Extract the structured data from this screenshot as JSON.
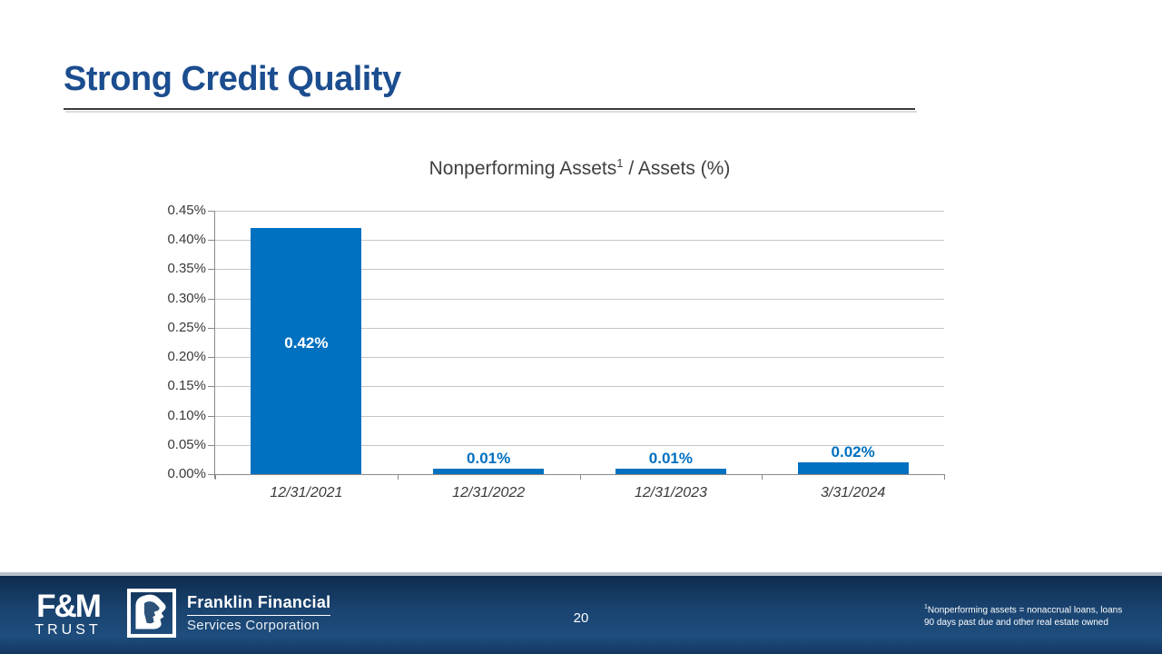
{
  "slide": {
    "title": "Strong Credit Quality",
    "page_number": "20"
  },
  "chart_data": {
    "type": "bar",
    "title_main": "Nonperforming Assets",
    "title_sup": "1",
    "title_tail": " / Assets (%)",
    "categories": [
      "12/31/2021",
      "12/31/2022",
      "12/31/2023",
      "3/31/2024"
    ],
    "values": [
      0.42,
      0.01,
      0.01,
      0.02
    ],
    "value_labels": [
      "0.42%",
      "0.01%",
      "0.01%",
      "0.02%"
    ],
    "ylim": [
      0,
      0.45
    ],
    "ytick_step": 0.05,
    "ytick_labels": [
      "0.00%",
      "0.05%",
      "0.10%",
      "0.15%",
      "0.20%",
      "0.25%",
      "0.30%",
      "0.35%",
      "0.40%",
      "0.45%"
    ],
    "grid": true,
    "legend": "none",
    "bar_color": "#0070C0",
    "value_label_color_inside": "#FFFFFF",
    "value_label_color_outside": "#0070C0"
  },
  "footer": {
    "fm_trust_logo": {
      "main": "F&M",
      "sub": "TRUST"
    },
    "franklin_logo": {
      "name": "Franklin Financial",
      "subname": "Services Corporation"
    },
    "footnote": {
      "sup": "1",
      "line1": "Nonperforming assets = nonaccrual loans, loans",
      "line2": "90 days past due and other real estate owned"
    }
  },
  "colors": {
    "title_navy": "#1B4D8F",
    "bar_blue": "#0070C0",
    "footer_navy_dark": "#0E2C4E",
    "footer_navy_light": "#1E4D7D",
    "gridline_gray": "#C6C6C6",
    "axis_gray": "#8A8A8A",
    "chart_text_gray": "#404040"
  }
}
